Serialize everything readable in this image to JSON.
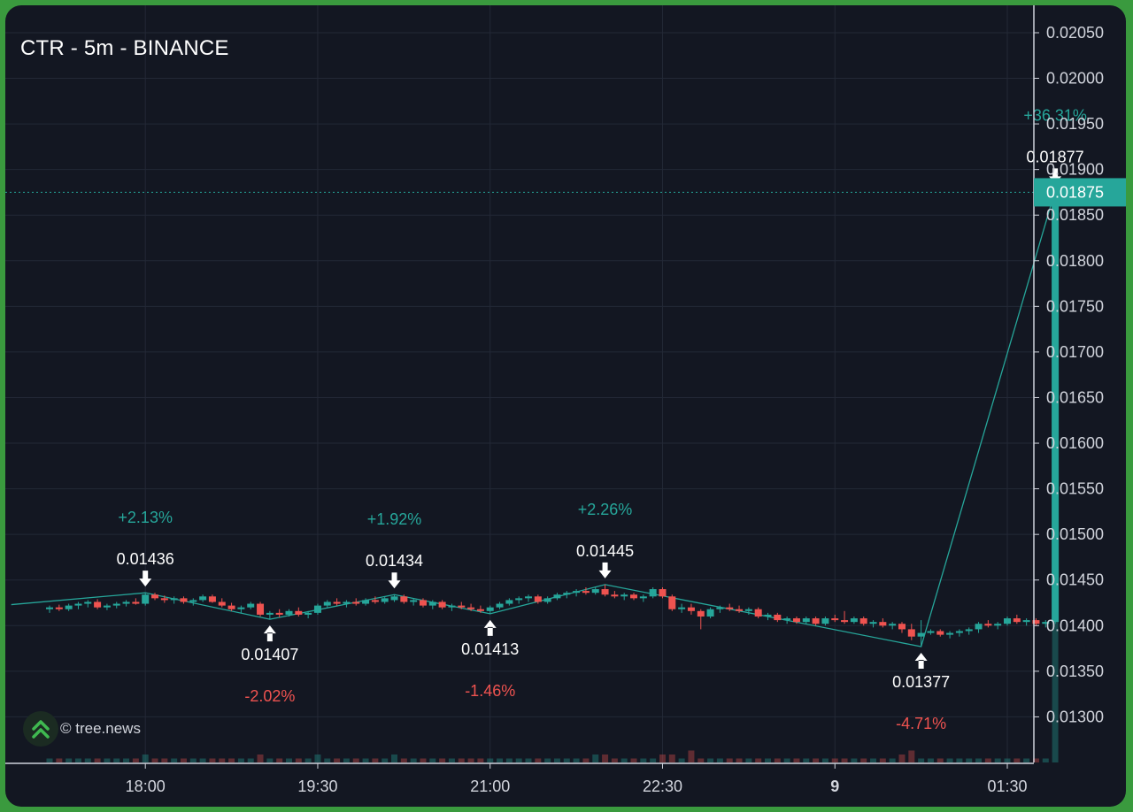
{
  "colors": {
    "background": "#131722",
    "grid": "#232836",
    "up": "#26a69a",
    "down": "#ef5350",
    "text": "#ffffff",
    "axis_text": "#d1d4dc",
    "price_tag_bg": "#26a69a",
    "frame": "#3a9a3e"
  },
  "watermark": {
    "text": "© tree.news",
    "icon": "double-chevron-up-logo"
  },
  "chart_data": {
    "type": "candlestick",
    "title": "CTR - 5m - BINANCE",
    "ylim": [
      0.0125,
      0.0208
    ],
    "y_ticks": [
      "0.02050",
      "0.02000",
      "0.01950",
      "0.01900",
      "0.01850",
      "0.01800",
      "0.01750",
      "0.01700",
      "0.01650",
      "0.01600",
      "0.01550",
      "0.01500",
      "0.01450",
      "0.01400",
      "0.01350",
      "0.01300"
    ],
    "x_ticks": [
      {
        "label": "18:00",
        "bar": 10,
        "bold": false
      },
      {
        "label": "19:30",
        "bar": 28,
        "bold": false
      },
      {
        "label": "21:00",
        "bar": 46,
        "bold": false
      },
      {
        "label": "22:30",
        "bar": 64,
        "bold": false
      },
      {
        "label": "9",
        "bar": 82,
        "bold": true
      },
      {
        "label": "01:30",
        "bar": 100,
        "bold": false
      }
    ],
    "current_price": "0.01875",
    "grid": true,
    "pivots": [
      {
        "type": "high",
        "bar": 10,
        "price": 0.01436,
        "label": "0.01436",
        "change": "+2.13%"
      },
      {
        "type": "low",
        "bar": 23,
        "price": 0.01407,
        "label": "0.01407",
        "change": "-2.02%"
      },
      {
        "type": "high",
        "bar": 36,
        "price": 0.01434,
        "label": "0.01434",
        "change": "+1.92%"
      },
      {
        "type": "low",
        "bar": 46,
        "price": 0.01413,
        "label": "0.01413",
        "change": "-1.46%"
      },
      {
        "type": "high",
        "bar": 58,
        "price": 0.01445,
        "label": "0.01445",
        "change": "+2.26%"
      },
      {
        "type": "low",
        "bar": 91,
        "price": 0.01377,
        "label": "0.01377",
        "change": "-4.71%"
      },
      {
        "type": "high",
        "bar": 105,
        "price": 0.01877,
        "label": "0.01877",
        "change": "+36.31%"
      }
    ],
    "candles": [
      [
        0.01418,
        0.01422,
        0.01414,
        0.0142
      ],
      [
        0.0142,
        0.01423,
        0.01416,
        0.01418
      ],
      [
        0.01418,
        0.01424,
        0.01416,
        0.01422
      ],
      [
        0.01422,
        0.01426,
        0.01418,
        0.01424
      ],
      [
        0.01424,
        0.01428,
        0.0142,
        0.01426
      ],
      [
        0.01426,
        0.01429,
        0.01418,
        0.0142
      ],
      [
        0.0142,
        0.01424,
        0.01417,
        0.01422
      ],
      [
        0.01422,
        0.01426,
        0.01419,
        0.01424
      ],
      [
        0.01424,
        0.01428,
        0.01421,
        0.01426
      ],
      [
        0.01426,
        0.0143,
        0.01423,
        0.01424
      ],
      [
        0.01424,
        0.01436,
        0.01422,
        0.01434
      ],
      [
        0.01434,
        0.01436,
        0.01428,
        0.0143
      ],
      [
        0.0143,
        0.01433,
        0.01425,
        0.01428
      ],
      [
        0.01428,
        0.01432,
        0.01424,
        0.0143
      ],
      [
        0.0143,
        0.01432,
        0.01424,
        0.01426
      ],
      [
        0.01426,
        0.0143,
        0.01422,
        0.01428
      ],
      [
        0.01428,
        0.01434,
        0.01426,
        0.01432
      ],
      [
        0.01432,
        0.01434,
        0.01425,
        0.01426
      ],
      [
        0.01426,
        0.0143,
        0.0142,
        0.01422
      ],
      [
        0.01422,
        0.01425,
        0.01416,
        0.01418
      ],
      [
        0.01418,
        0.01422,
        0.01414,
        0.0142
      ],
      [
        0.0142,
        0.01426,
        0.01418,
        0.01424
      ],
      [
        0.01424,
        0.01426,
        0.0141,
        0.01412
      ],
      [
        0.01412,
        0.01416,
        0.01407,
        0.01414
      ],
      [
        0.01414,
        0.01418,
        0.01409,
        0.01412
      ],
      [
        0.01412,
        0.01418,
        0.0141,
        0.01416
      ],
      [
        0.01416,
        0.0142,
        0.0141,
        0.01412
      ],
      [
        0.01412,
        0.01416,
        0.01408,
        0.01414
      ],
      [
        0.01414,
        0.01424,
        0.01412,
        0.01422
      ],
      [
        0.01422,
        0.01428,
        0.0142,
        0.01426
      ],
      [
        0.01426,
        0.0143,
        0.01422,
        0.01424
      ],
      [
        0.01424,
        0.01428,
        0.0142,
        0.01426
      ],
      [
        0.01426,
        0.0143,
        0.01422,
        0.01424
      ],
      [
        0.01424,
        0.0143,
        0.01422,
        0.01428
      ],
      [
        0.01428,
        0.01432,
        0.01424,
        0.01426
      ],
      [
        0.01426,
        0.01432,
        0.01424,
        0.0143
      ],
      [
        0.01428,
        0.01434,
        0.01426,
        0.01432
      ],
      [
        0.01432,
        0.01434,
        0.01424,
        0.01426
      ],
      [
        0.01426,
        0.0143,
        0.01422,
        0.01428
      ],
      [
        0.01428,
        0.0143,
        0.0142,
        0.01422
      ],
      [
        0.01422,
        0.01428,
        0.01418,
        0.01426
      ],
      [
        0.01426,
        0.01428,
        0.01418,
        0.0142
      ],
      [
        0.0142,
        0.01424,
        0.01416,
        0.01422
      ],
      [
        0.01422,
        0.01426,
        0.01418,
        0.0142
      ],
      [
        0.0142,
        0.01424,
        0.01416,
        0.01418
      ],
      [
        0.01418,
        0.01422,
        0.01414,
        0.01416
      ],
      [
        0.01416,
        0.01422,
        0.01413,
        0.0142
      ],
      [
        0.0142,
        0.01426,
        0.01418,
        0.01424
      ],
      [
        0.01424,
        0.0143,
        0.01422,
        0.01428
      ],
      [
        0.01428,
        0.01432,
        0.01424,
        0.0143
      ],
      [
        0.0143,
        0.01434,
        0.01426,
        0.01432
      ],
      [
        0.01432,
        0.01434,
        0.01424,
        0.01426
      ],
      [
        0.01426,
        0.01432,
        0.01424,
        0.0143
      ],
      [
        0.0143,
        0.01436,
        0.01428,
        0.01434
      ],
      [
        0.01434,
        0.01438,
        0.0143,
        0.01436
      ],
      [
        0.01436,
        0.0144,
        0.01432,
        0.01438
      ],
      [
        0.01438,
        0.01442,
        0.01434,
        0.01436
      ],
      [
        0.01436,
        0.01442,
        0.01434,
        0.0144
      ],
      [
        0.0144,
        0.01445,
        0.01432,
        0.01434
      ],
      [
        0.01434,
        0.01438,
        0.0143,
        0.01432
      ],
      [
        0.01432,
        0.01436,
        0.01428,
        0.01434
      ],
      [
        0.01434,
        0.01436,
        0.01428,
        0.0143
      ],
      [
        0.0143,
        0.01434,
        0.01426,
        0.01432
      ],
      [
        0.01432,
        0.01442,
        0.0143,
        0.0144
      ],
      [
        0.0144,
        0.01442,
        0.0143,
        0.01432
      ],
      [
        0.01432,
        0.01434,
        0.01416,
        0.01418
      ],
      [
        0.01418,
        0.01424,
        0.01414,
        0.0142
      ],
      [
        0.0142,
        0.01424,
        0.01412,
        0.01416
      ],
      [
        0.01416,
        0.01418,
        0.01396,
        0.0141
      ],
      [
        0.0141,
        0.0142,
        0.01408,
        0.01418
      ],
      [
        0.01418,
        0.01422,
        0.01414,
        0.0142
      ],
      [
        0.0142,
        0.01424,
        0.01416,
        0.01418
      ],
      [
        0.01418,
        0.01422,
        0.01414,
        0.01416
      ],
      [
        0.01416,
        0.0142,
        0.01412,
        0.01418
      ],
      [
        0.01418,
        0.0142,
        0.01408,
        0.0141
      ],
      [
        0.0141,
        0.01414,
        0.01406,
        0.01412
      ],
      [
        0.01412,
        0.01414,
        0.01404,
        0.01406
      ],
      [
        0.01406,
        0.0141,
        0.01402,
        0.01408
      ],
      [
        0.01408,
        0.0141,
        0.01402,
        0.01404
      ],
      [
        0.01404,
        0.0141,
        0.01402,
        0.01408
      ],
      [
        0.01408,
        0.0141,
        0.014,
        0.01402
      ],
      [
        0.01402,
        0.0141,
        0.014,
        0.01408
      ],
      [
        0.01408,
        0.01412,
        0.01404,
        0.01406
      ],
      [
        0.01406,
        0.01416,
        0.01402,
        0.01404
      ],
      [
        0.01404,
        0.0141,
        0.01402,
        0.01408
      ],
      [
        0.01408,
        0.0141,
        0.014,
        0.01402
      ],
      [
        0.01402,
        0.01406,
        0.01398,
        0.01404
      ],
      [
        0.01404,
        0.01408,
        0.01398,
        0.014
      ],
      [
        0.014,
        0.01404,
        0.01396,
        0.01402
      ],
      [
        0.01402,
        0.01404,
        0.01392,
        0.01396
      ],
      [
        0.01396,
        0.01402,
        0.01384,
        0.01388
      ],
      [
        0.01388,
        0.01406,
        0.01377,
        0.01392
      ],
      [
        0.01392,
        0.01396,
        0.0139,
        0.01394
      ],
      [
        0.01394,
        0.01396,
        0.01388,
        0.0139
      ],
      [
        0.0139,
        0.01394,
        0.01386,
        0.01392
      ],
      [
        0.01392,
        0.01396,
        0.01388,
        0.01394
      ],
      [
        0.01394,
        0.01398,
        0.0139,
        0.01396
      ],
      [
        0.01396,
        0.01404,
        0.01392,
        0.01402
      ],
      [
        0.01402,
        0.01406,
        0.01398,
        0.014
      ],
      [
        0.014,
        0.01404,
        0.01396,
        0.01402
      ],
      [
        0.01402,
        0.0141,
        0.014,
        0.01408
      ],
      [
        0.01408,
        0.01412,
        0.01402,
        0.01404
      ],
      [
        0.01404,
        0.01408,
        0.014,
        0.01406
      ],
      [
        0.01406,
        0.01408,
        0.014,
        0.01402
      ],
      [
        0.01402,
        0.01406,
        0.01398,
        0.01404
      ],
      [
        0.01404,
        0.01877,
        0.01402,
        0.01875
      ]
    ],
    "volumes": [
      1,
      1,
      1,
      1,
      1,
      1,
      1,
      1,
      1,
      1,
      2,
      1,
      1,
      1,
      1,
      1,
      1,
      1,
      1,
      1,
      1,
      1,
      2,
      1,
      1,
      1,
      1,
      1,
      2,
      1,
      1,
      1,
      1,
      1,
      1,
      1,
      2,
      1,
      1,
      1,
      1,
      1,
      1,
      1,
      1,
      1,
      1,
      1,
      1,
      1,
      1,
      1,
      1,
      1,
      1,
      1,
      1,
      2,
      2,
      1,
      1,
      1,
      1,
      1,
      2,
      2,
      1,
      3,
      1,
      1,
      1,
      1,
      1,
      1,
      1,
      1,
      1,
      1,
      1,
      1,
      1,
      1,
      1,
      1,
      1,
      1,
      1,
      1,
      1,
      2,
      3,
      1,
      1,
      1,
      1,
      1,
      1,
      1,
      1,
      1,
      1,
      1,
      1,
      1,
      1,
      40
    ]
  }
}
